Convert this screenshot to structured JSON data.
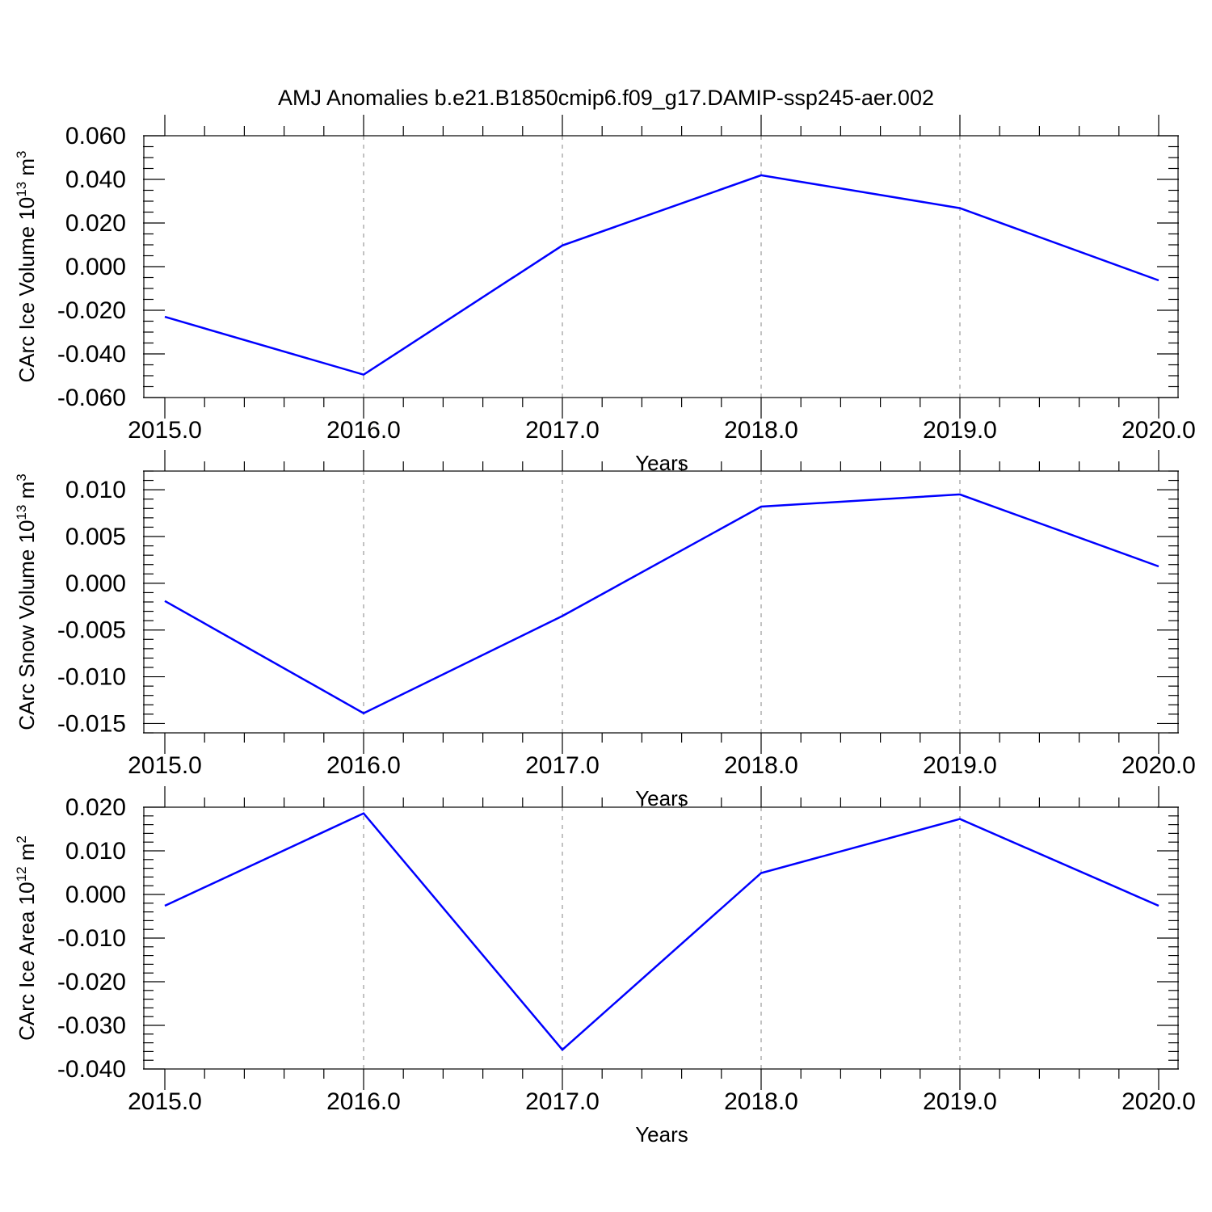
{
  "title": "AMJ Anomalies b.e21.B1850cmip6.f09_g17.DAMIP-ssp245-aer.002",
  "colors": {
    "line": "#0000ff",
    "axis": "#000000",
    "grid": "#9a9a9a"
  },
  "chart_data": [
    {
      "type": "line",
      "title": "AMJ Anomalies b.e21.B1850cmip6.f09_g17.DAMIP-ssp245-aer.002",
      "xlabel": "Years",
      "ylabel": {
        "text": "CArc Ice Volume 10",
        "exponent": "13",
        "unit": " m",
        "unit_exponent": "3"
      },
      "xlim": [
        2015,
        2020
      ],
      "ylim": [
        -0.06,
        0.06
      ],
      "x_ticks": [
        2015,
        2016,
        2017,
        2018,
        2019,
        2020
      ],
      "x_tick_labels": [
        "2015.0",
        "2016.0",
        "2017.0",
        "2018.0",
        "2019.0",
        "2020.0"
      ],
      "y_ticks": [
        -0.06,
        -0.04,
        -0.02,
        0.0,
        0.02,
        0.04,
        0.06
      ],
      "y_tick_labels": [
        "-0.060",
        "-0.040",
        "-0.020",
        "0.000",
        "0.020",
        "0.040",
        "0.060"
      ],
      "y_minor_step": 0.005,
      "x_minor_step": 0.2,
      "grid": "vertical dashed at major x ticks",
      "x": [
        2015,
        2016,
        2017,
        2018,
        2019,
        2020
      ],
      "series": [
        {
          "values": [
            -0.023,
            -0.0495,
            0.0097,
            0.0419,
            0.0268,
            -0.0063
          ]
        }
      ]
    },
    {
      "type": "line",
      "xlabel": "Years",
      "ylabel": {
        "text": "CArc Snow Volume 10",
        "exponent": "13",
        "unit": " m",
        "unit_exponent": "3"
      },
      "xlim": [
        2015,
        2020
      ],
      "ylim": [
        -0.016,
        0.012
      ],
      "x_ticks": [
        2015,
        2016,
        2017,
        2018,
        2019,
        2020
      ],
      "x_tick_labels": [
        "2015.0",
        "2016.0",
        "2017.0",
        "2018.0",
        "2019.0",
        "2020.0"
      ],
      "y_ticks": [
        -0.015,
        -0.01,
        -0.005,
        0.0,
        0.005,
        0.01
      ],
      "y_tick_labels": [
        "-0.015",
        "-0.010",
        "-0.005",
        "0.000",
        "0.005",
        "0.010"
      ],
      "y_minor_step": 0.001,
      "x_minor_step": 0.2,
      "grid": "vertical dashed at major x ticks",
      "x": [
        2015,
        2016,
        2017,
        2018,
        2019,
        2020
      ],
      "series": [
        {
          "values": [
            -0.0019,
            -0.0139,
            -0.0035,
            0.0082,
            0.0095,
            0.0018
          ]
        }
      ]
    },
    {
      "type": "line",
      "xlabel": "Years",
      "ylabel": {
        "text": "CArc Ice Area 10",
        "exponent": "12",
        "unit": " m",
        "unit_exponent": "2"
      },
      "xlim": [
        2015,
        2020
      ],
      "ylim": [
        -0.04,
        0.02
      ],
      "x_ticks": [
        2015,
        2016,
        2017,
        2018,
        2019,
        2020
      ],
      "x_tick_labels": [
        "2015.0",
        "2016.0",
        "2017.0",
        "2018.0",
        "2019.0",
        "2020.0"
      ],
      "y_ticks": [
        -0.04,
        -0.03,
        -0.02,
        -0.01,
        0.0,
        0.01,
        0.02
      ],
      "y_tick_labels": [
        "-0.040",
        "-0.030",
        "-0.020",
        "-0.010",
        "0.000",
        "0.010",
        "0.020"
      ],
      "y_minor_step": 0.002,
      "x_minor_step": 0.2,
      "grid": "vertical dashed at major x ticks",
      "x": [
        2015,
        2016,
        2017,
        2018,
        2019,
        2020
      ],
      "series": [
        {
          "values": [
            -0.0026,
            0.0186,
            -0.0356,
            0.0049,
            0.0173,
            -0.0026
          ]
        }
      ]
    }
  ]
}
